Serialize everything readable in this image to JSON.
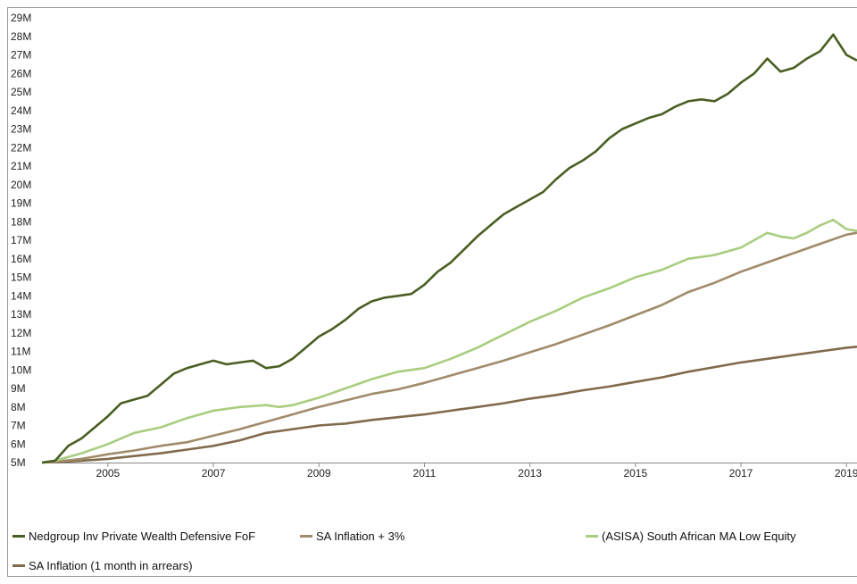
{
  "chart_data": {
    "type": "line",
    "title": "",
    "xlabel": "",
    "ylabel": "",
    "xlim": [
      2003.75,
      2019.2
    ],
    "ylim": [
      5,
      29
    ],
    "y_ticks": [
      {
        "value": 5,
        "label": "5M"
      },
      {
        "value": 6,
        "label": "6M"
      },
      {
        "value": 7,
        "label": "7M"
      },
      {
        "value": 8,
        "label": "8M"
      },
      {
        "value": 9,
        "label": "9M"
      },
      {
        "value": 10,
        "label": "10M"
      },
      {
        "value": 11,
        "label": "11M"
      },
      {
        "value": 12,
        "label": "12M"
      },
      {
        "value": 13,
        "label": "13M"
      },
      {
        "value": 14,
        "label": "14M"
      },
      {
        "value": 15,
        "label": "15M"
      },
      {
        "value": 16,
        "label": "16M"
      },
      {
        "value": 17,
        "label": "17M"
      },
      {
        "value": 18,
        "label": "18M"
      },
      {
        "value": 19,
        "label": "19M"
      },
      {
        "value": 20,
        "label": "20M"
      },
      {
        "value": 21,
        "label": "21M"
      },
      {
        "value": 22,
        "label": "22M"
      },
      {
        "value": 23,
        "label": "23M"
      },
      {
        "value": 24,
        "label": "24M"
      },
      {
        "value": 25,
        "label": "25M"
      },
      {
        "value": 26,
        "label": "26M"
      },
      {
        "value": 27,
        "label": "27M"
      },
      {
        "value": 28,
        "label": "28M"
      },
      {
        "value": 29,
        "label": "29M"
      }
    ],
    "x_ticks": [
      {
        "value": 2005,
        "label": "2005"
      },
      {
        "value": 2007,
        "label": "2007"
      },
      {
        "value": 2009,
        "label": "2009"
      },
      {
        "value": 2011,
        "label": "2011"
      },
      {
        "value": 2013,
        "label": "2013"
      },
      {
        "value": 2015,
        "label": "2015"
      },
      {
        "value": 2017,
        "label": "2017"
      },
      {
        "value": 2019,
        "label": "2019"
      }
    ],
    "grid": false,
    "legend_position": "bottom",
    "series": [
      {
        "name": "Nedgroup Inv Private Wealth Defensive FoF",
        "color": "#4a5e23",
        "x": [
          2003.75,
          2004.0,
          2004.25,
          2004.5,
          2004.75,
          2005.0,
          2005.25,
          2005.5,
          2005.75,
          2006.0,
          2006.25,
          2006.5,
          2006.75,
          2007.0,
          2007.25,
          2007.5,
          2007.75,
          2008.0,
          2008.25,
          2008.5,
          2008.75,
          2009.0,
          2009.25,
          2009.5,
          2009.75,
          2010.0,
          2010.25,
          2010.5,
          2010.75,
          2011.0,
          2011.25,
          2011.5,
          2011.75,
          2012.0,
          2012.25,
          2012.5,
          2012.75,
          2013.0,
          2013.25,
          2013.5,
          2013.75,
          2014.0,
          2014.25,
          2014.5,
          2014.75,
          2015.0,
          2015.25,
          2015.5,
          2015.75,
          2016.0,
          2016.25,
          2016.5,
          2016.75,
          2017.0,
          2017.25,
          2017.5,
          2017.75,
          2018.0,
          2018.25,
          2018.5,
          2018.75,
          2019.0,
          2019.2
        ],
        "values": [
          5.0,
          5.1,
          5.9,
          6.3,
          6.9,
          7.5,
          8.2,
          8.4,
          8.6,
          9.2,
          9.8,
          10.1,
          10.3,
          10.5,
          10.3,
          10.4,
          10.5,
          10.1,
          10.2,
          10.6,
          11.2,
          11.8,
          12.2,
          12.7,
          13.3,
          13.7,
          13.9,
          14.0,
          14.1,
          14.6,
          15.3,
          15.8,
          16.5,
          17.2,
          17.8,
          18.4,
          18.8,
          19.2,
          19.6,
          20.3,
          20.9,
          21.3,
          21.8,
          22.5,
          23.0,
          23.3,
          23.6,
          23.8,
          24.2,
          24.5,
          24.6,
          24.5,
          24.9,
          25.5,
          26.0,
          26.8,
          26.1,
          26.3,
          26.8,
          27.2,
          28.1,
          27.0,
          26.7
        ]
      },
      {
        "name": "SA Inflation + 3%",
        "color": "#a08b6a",
        "x": [
          2003.75,
          2004.0,
          2004.5,
          2005.0,
          2005.5,
          2006.0,
          2006.5,
          2007.0,
          2007.5,
          2008.0,
          2008.5,
          2009.0,
          2009.5,
          2010.0,
          2010.5,
          2011.0,
          2011.5,
          2012.0,
          2012.5,
          2013.0,
          2013.5,
          2014.0,
          2014.5,
          2015.0,
          2015.5,
          2016.0,
          2016.5,
          2017.0,
          2017.5,
          2018.0,
          2018.5,
          2019.0,
          2019.2
        ],
        "values": [
          5.0,
          5.05,
          5.2,
          5.45,
          5.65,
          5.9,
          6.1,
          6.45,
          6.8,
          7.2,
          7.6,
          8.0,
          8.35,
          8.7,
          8.95,
          9.3,
          9.7,
          10.1,
          10.5,
          10.95,
          11.4,
          11.9,
          12.4,
          12.95,
          13.5,
          14.2,
          14.7,
          15.3,
          15.8,
          16.3,
          16.8,
          17.3,
          17.4
        ]
      },
      {
        "name": "(ASISA) South African MA Low Equity",
        "color": "#a9cd7f",
        "x": [
          2003.75,
          2004.0,
          2004.5,
          2005.0,
          2005.5,
          2006.0,
          2006.5,
          2007.0,
          2007.5,
          2008.0,
          2008.25,
          2008.5,
          2009.0,
          2009.5,
          2010.0,
          2010.5,
          2011.0,
          2011.5,
          2012.0,
          2012.5,
          2013.0,
          2013.5,
          2014.0,
          2014.5,
          2015.0,
          2015.5,
          2016.0,
          2016.5,
          2017.0,
          2017.25,
          2017.5,
          2017.75,
          2018.0,
          2018.25,
          2018.5,
          2018.75,
          2019.0,
          2019.2
        ],
        "values": [
          5.0,
          5.1,
          5.5,
          6.0,
          6.6,
          6.9,
          7.4,
          7.8,
          8.0,
          8.1,
          8.0,
          8.1,
          8.5,
          9.0,
          9.5,
          9.9,
          10.1,
          10.6,
          11.2,
          11.9,
          12.6,
          13.2,
          13.9,
          14.4,
          15.0,
          15.4,
          16.0,
          16.2,
          16.6,
          17.0,
          17.4,
          17.2,
          17.1,
          17.4,
          17.8,
          18.1,
          17.6,
          17.5
        ]
      },
      {
        "name": "SA Inflation (1 month in arrears)",
        "color": "#806a4c",
        "x": [
          2003.75,
          2004.0,
          2004.5,
          2005.0,
          2005.5,
          2006.0,
          2006.5,
          2007.0,
          2007.5,
          2008.0,
          2008.5,
          2009.0,
          2009.5,
          2010.0,
          2010.5,
          2011.0,
          2011.5,
          2012.0,
          2012.5,
          2013.0,
          2013.5,
          2014.0,
          2014.5,
          2015.0,
          2015.5,
          2016.0,
          2016.5,
          2017.0,
          2017.5,
          2018.0,
          2018.5,
          2019.0,
          2019.2
        ],
        "values": [
          5.0,
          5.02,
          5.1,
          5.2,
          5.35,
          5.5,
          5.7,
          5.9,
          6.2,
          6.6,
          6.8,
          7.0,
          7.1,
          7.3,
          7.45,
          7.6,
          7.8,
          8.0,
          8.2,
          8.45,
          8.65,
          8.9,
          9.1,
          9.35,
          9.6,
          9.9,
          10.15,
          10.4,
          10.6,
          10.8,
          11.0,
          11.2,
          11.25
        ]
      }
    ]
  }
}
